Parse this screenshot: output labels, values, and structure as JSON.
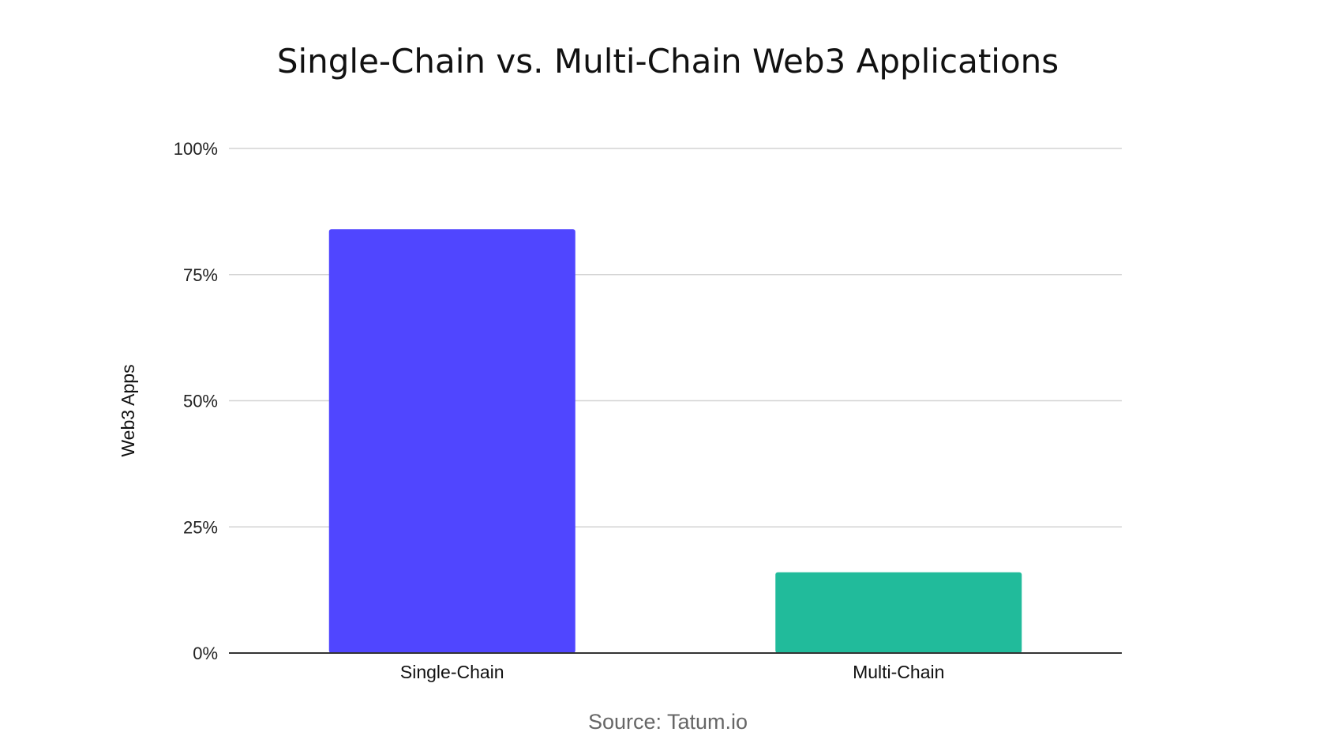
{
  "chart_data": {
    "type": "bar",
    "title": "Single-Chain vs. Multi-Chain Web3 Applications",
    "xlabel": "",
    "ylabel": "Web3 Apps",
    "categories": [
      "Single-Chain",
      "Multi-Chain"
    ],
    "values": [
      84,
      16
    ],
    "bar_colors": [
      "#5046FF",
      "#21BB9B"
    ],
    "ylim": [
      0,
      100
    ],
    "yticks": [
      0,
      25,
      50,
      75,
      100
    ],
    "ytick_labels": [
      "0%",
      "25%",
      "50%",
      "75%",
      "100%"
    ],
    "grid": true,
    "legend": "none"
  },
  "source": "Source: Tatum.io",
  "colors": {
    "grid": "#d3d3d3",
    "axis": "#333333"
  }
}
